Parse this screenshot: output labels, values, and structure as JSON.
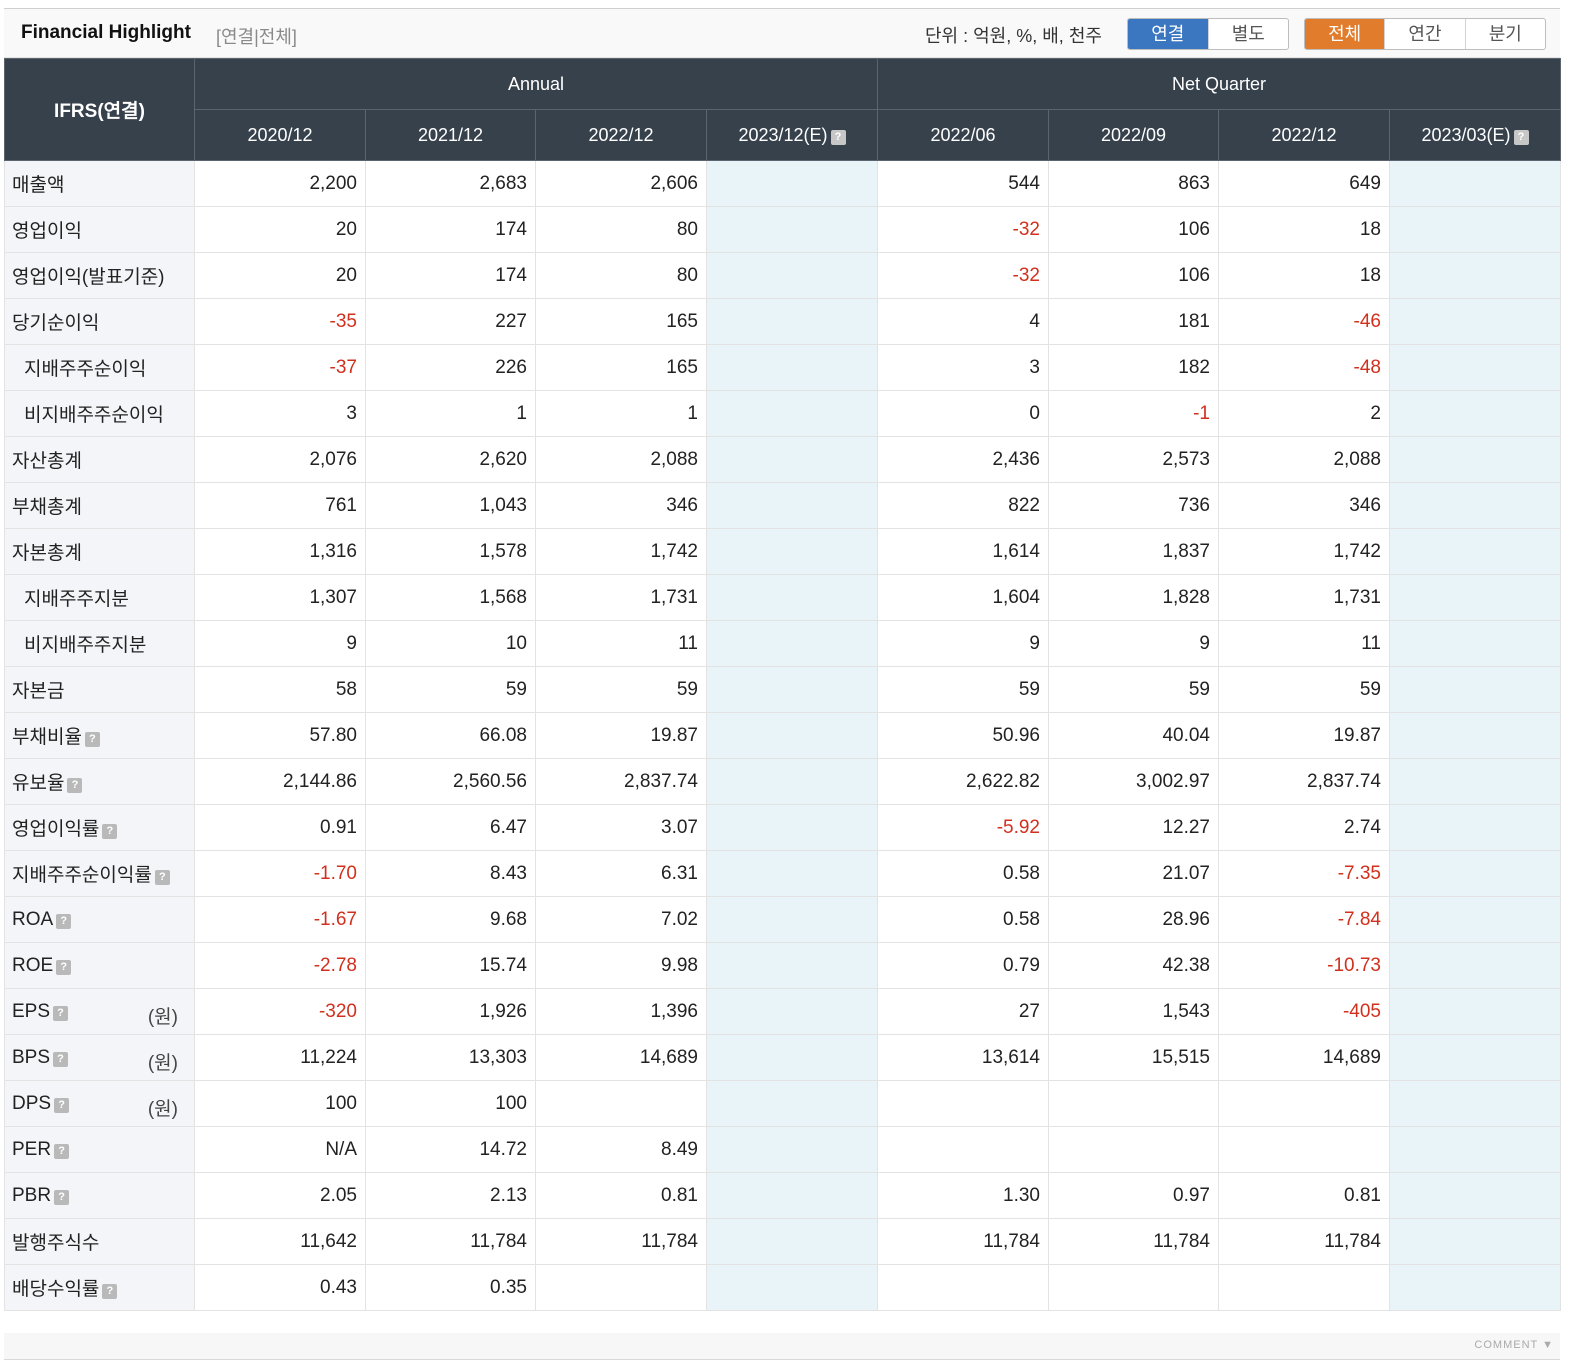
{
  "header": {
    "title": "Financial Highlight",
    "subtitle": "[연결|전체]",
    "unit_text": "단위 : 억원, %, 배, 천주",
    "toggle_consol": [
      "연결",
      "별도"
    ],
    "toggle_consol_active": 0,
    "toggle_period": [
      "전체",
      "연간",
      "분기"
    ],
    "toggle_period_active": 0
  },
  "table": {
    "corner": "IFRS(연결)",
    "group_annual": "Annual",
    "group_quarter": "Net Quarter",
    "columns": [
      "2020/12",
      "2021/12",
      "2022/12",
      "2023/12(E)",
      "2022/06",
      "2022/09",
      "2022/12",
      "2023/03(E)"
    ],
    "rows": [
      {
        "label": "매출액",
        "vals": [
          "2,200",
          "2,683",
          "2,606",
          "",
          "544",
          "863",
          "649",
          ""
        ]
      },
      {
        "label": "영업이익",
        "vals": [
          "20",
          "174",
          "80",
          "",
          "-32",
          "106",
          "18",
          ""
        ]
      },
      {
        "label": "영업이익(발표기준)",
        "vals": [
          "20",
          "174",
          "80",
          "",
          "-32",
          "106",
          "18",
          ""
        ]
      },
      {
        "label": "당기순이익",
        "vals": [
          "-35",
          "227",
          "165",
          "",
          "4",
          "181",
          "-46",
          ""
        ]
      },
      {
        "label": "지배주주순이익",
        "sub": true,
        "vals": [
          "-37",
          "226",
          "165",
          "",
          "3",
          "182",
          "-48",
          ""
        ]
      },
      {
        "label": "비지배주주순이익",
        "sub": true,
        "vals": [
          "3",
          "1",
          "1",
          "",
          "0",
          "-1",
          "2",
          ""
        ]
      },
      {
        "label": "자산총계",
        "vals": [
          "2,076",
          "2,620",
          "2,088",
          "",
          "2,436",
          "2,573",
          "2,088",
          ""
        ]
      },
      {
        "label": "부채총계",
        "vals": [
          "761",
          "1,043",
          "346",
          "",
          "822",
          "736",
          "346",
          ""
        ]
      },
      {
        "label": "자본총계",
        "vals": [
          "1,316",
          "1,578",
          "1,742",
          "",
          "1,614",
          "1,837",
          "1,742",
          ""
        ]
      },
      {
        "label": "지배주주지분",
        "sub": true,
        "vals": [
          "1,307",
          "1,568",
          "1,731",
          "",
          "1,604",
          "1,828",
          "1,731",
          ""
        ]
      },
      {
        "label": "비지배주주지분",
        "sub": true,
        "vals": [
          "9",
          "10",
          "11",
          "",
          "9",
          "9",
          "11",
          ""
        ]
      },
      {
        "label": "자본금",
        "vals": [
          "58",
          "59",
          "59",
          "",
          "59",
          "59",
          "59",
          ""
        ]
      },
      {
        "label": "부채비율",
        "help": true,
        "vals": [
          "57.80",
          "66.08",
          "19.87",
          "",
          "50.96",
          "40.04",
          "19.87",
          ""
        ]
      },
      {
        "label": "유보율",
        "help": true,
        "vals": [
          "2,144.86",
          "2,560.56",
          "2,837.74",
          "",
          "2,622.82",
          "3,002.97",
          "2,837.74",
          ""
        ]
      },
      {
        "label": "영업이익률",
        "help": true,
        "vals": [
          "0.91",
          "6.47",
          "3.07",
          "",
          "-5.92",
          "12.27",
          "2.74",
          ""
        ]
      },
      {
        "label": "지배주주순이익률",
        "help": true,
        "vals": [
          "-1.70",
          "8.43",
          "6.31",
          "",
          "0.58",
          "21.07",
          "-7.35",
          ""
        ]
      },
      {
        "label": "ROA",
        "help": true,
        "vals": [
          "-1.67",
          "9.68",
          "7.02",
          "",
          "0.58",
          "28.96",
          "-7.84",
          ""
        ]
      },
      {
        "label": "ROE",
        "help": true,
        "vals": [
          "-2.78",
          "15.74",
          "9.98",
          "",
          "0.79",
          "42.38",
          "-10.73",
          ""
        ]
      },
      {
        "label": "EPS",
        "help": true,
        "unit": "(원)",
        "vals": [
          "-320",
          "1,926",
          "1,396",
          "",
          "27",
          "1,543",
          "-405",
          ""
        ]
      },
      {
        "label": "BPS",
        "help": true,
        "unit": "(원)",
        "vals": [
          "11,224",
          "13,303",
          "14,689",
          "",
          "13,614",
          "15,515",
          "14,689",
          ""
        ]
      },
      {
        "label": "DPS",
        "help": true,
        "unit": "(원)",
        "vals": [
          "100",
          "100",
          "",
          "",
          "",
          "",
          "",
          ""
        ]
      },
      {
        "label": "PER",
        "help": true,
        "vals": [
          "N/A",
          "14.72",
          "8.49",
          "",
          "",
          "",
          "",
          ""
        ]
      },
      {
        "label": "PBR",
        "help": true,
        "vals": [
          "2.05",
          "2.13",
          "0.81",
          "",
          "1.30",
          "0.97",
          "0.81",
          ""
        ]
      },
      {
        "label": "발행주식수",
        "vals": [
          "11,642",
          "11,784",
          "11,784",
          "",
          "11,784",
          "11,784",
          "11,784",
          ""
        ]
      },
      {
        "label": "배당수익률",
        "help": true,
        "vals": [
          "0.43",
          "0.35",
          "",
          "",
          "",
          "",
          "",
          ""
        ]
      }
    ],
    "estimate_columns": [
      3,
      7
    ]
  },
  "footer": {
    "comment": "COMMENT ▼"
  },
  "colors": {
    "header_bg": "#36414c",
    "negative": "#d1301d",
    "estimate_bg": "#e9f4f8",
    "consol_active": "#3a77c0",
    "period_active": "#e07c2b"
  }
}
